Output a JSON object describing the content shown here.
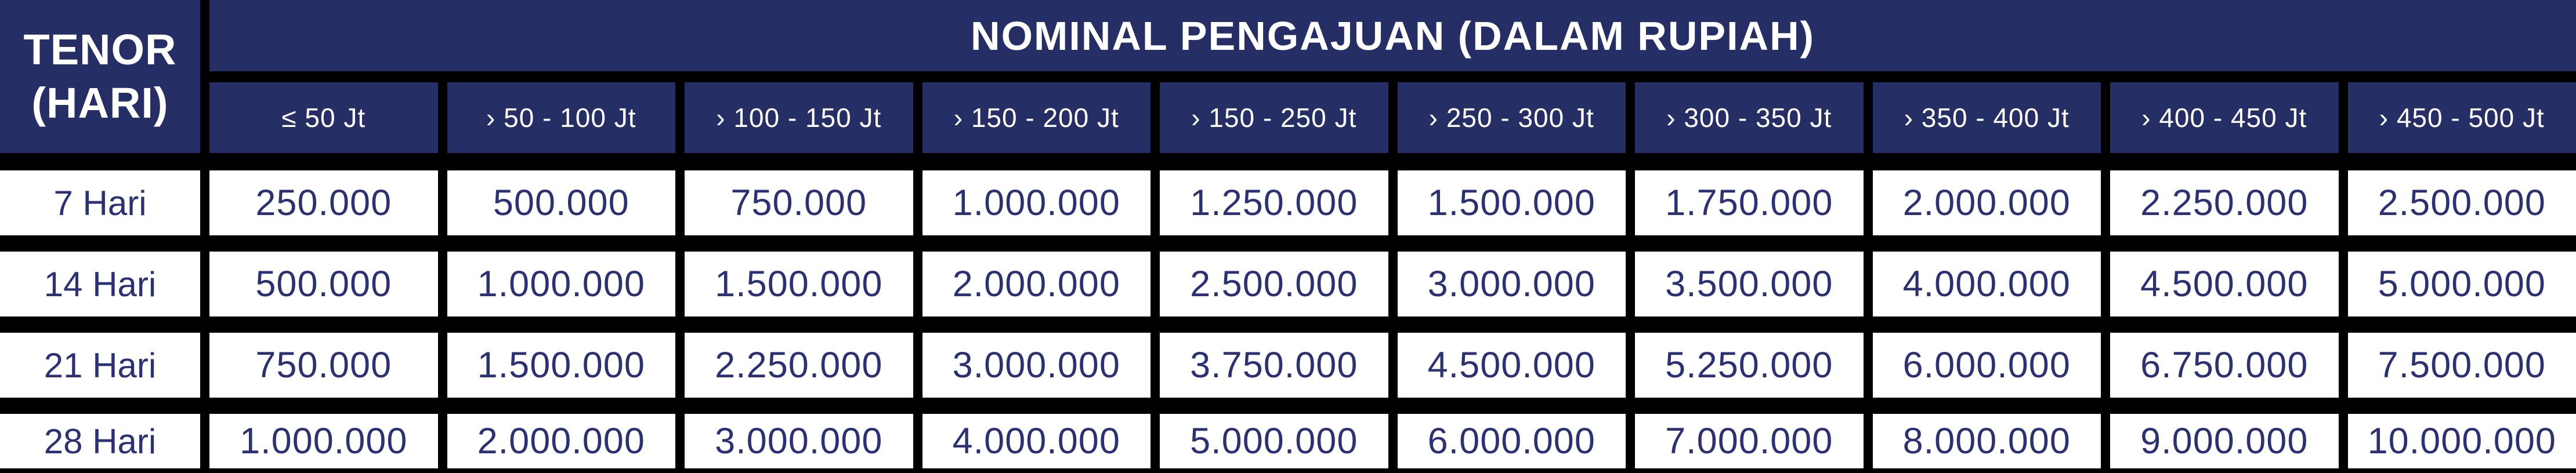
{
  "corner": {
    "line1": "TENOR",
    "line2": "(HARI)"
  },
  "chart_data": {
    "type": "table",
    "title": "NOMINAL PENGAJUAN (DALAM RUPIAH)",
    "row_header_label": "TENOR (HARI)",
    "columns": [
      "≤ 50 Jt",
      "› 50 - 100 Jt",
      "› 100 - 150 Jt",
      "› 150 - 200 Jt",
      "› 150 - 250 Jt",
      "› 250 - 300 Jt",
      "› 300 - 350 Jt",
      "› 350 - 400 Jt",
      "› 400 - 450 Jt",
      "› 450 - 500 Jt"
    ],
    "rows": [
      {
        "tenor": "7 Hari",
        "values": [
          "250.000",
          "500.000",
          "750.000",
          "1.000.000",
          "1.250.000",
          "1.500.000",
          "1.750.000",
          "2.000.000",
          "2.250.000",
          "2.500.000"
        ]
      },
      {
        "tenor": "14 Hari",
        "values": [
          "500.000",
          "1.000.000",
          "1.500.000",
          "2.000.000",
          "2.500.000",
          "3.000.000",
          "3.500.000",
          "4.000.000",
          "4.500.000",
          "5.000.000"
        ]
      },
      {
        "tenor": "21 Hari",
        "values": [
          "750.000",
          "1.500.000",
          "2.250.000",
          "3.000.000",
          "3.750.000",
          "4.500.000",
          "5.250.000",
          "6.000.000",
          "6.750.000",
          "7.500.000"
        ]
      },
      {
        "tenor": "28 Hari",
        "values": [
          "1.000.000",
          "2.000.000",
          "3.000.000",
          "4.000.000",
          "5.000.000",
          "6.000.000",
          "7.000.000",
          "8.000.000",
          "9.000.000",
          "10.000.000"
        ]
      }
    ]
  },
  "colors": {
    "header_navy": "#262e66",
    "cell_background": "#ffffff",
    "value_text_navy": "#2b3173",
    "grid_background": "#000000",
    "header_text": "#ffffff"
  }
}
